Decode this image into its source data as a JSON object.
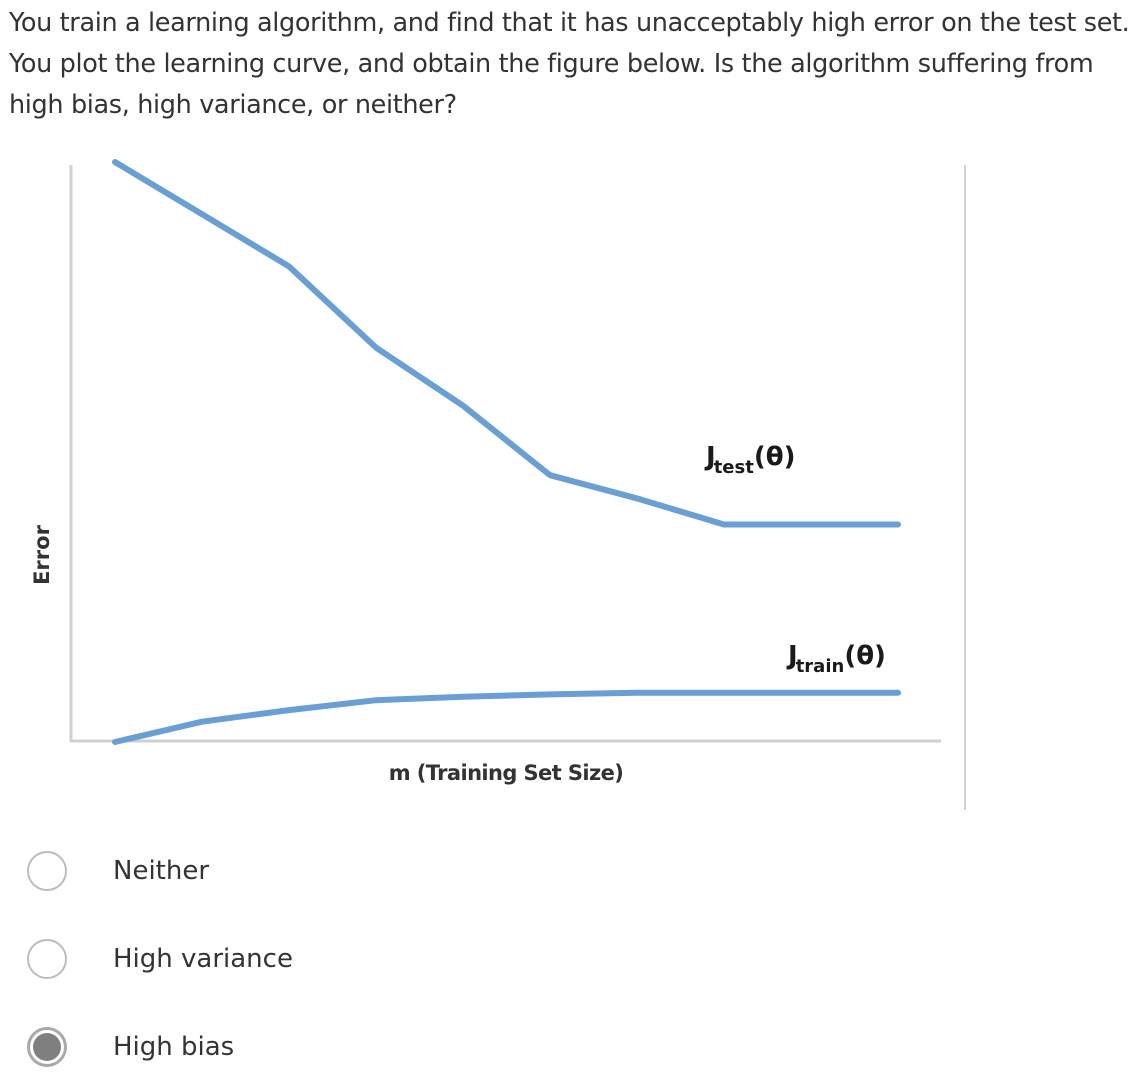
{
  "question": {
    "text": "You train a learning algorithm, and find that it has unacceptably high error on the test set. You plot the learning curve, and obtain the figure below. Is the algorithm suffering from high bias, high variance, or neither?"
  },
  "chart_data": {
    "type": "line",
    "ylabel": "Error",
    "xlabel": "m (Training Set Size)",
    "x": [
      0,
      1,
      2,
      3,
      4,
      5,
      6,
      7,
      8,
      9
    ],
    "series": [
      {
        "name": "Jtest(θ)",
        "label_main": "J",
        "label_sub": "test",
        "label_arg": "(θ)",
        "color": "#6a9fd4",
        "values": [
          10.0,
          9.1,
          8.2,
          6.8,
          5.8,
          4.6,
          4.2,
          3.75,
          3.75,
          3.75
        ]
      },
      {
        "name": "Jtrain(θ)",
        "label_main": "J",
        "label_sub": "train",
        "label_arg": "(θ)",
        "color": "#6a9fd4",
        "values": [
          0.0,
          0.35,
          0.55,
          0.72,
          0.78,
          0.82,
          0.85,
          0.85,
          0.85,
          0.85
        ]
      }
    ],
    "ylim": [
      0,
      10
    ],
    "grid": false,
    "legend": "inline"
  },
  "options": [
    {
      "label": "Neither",
      "checked": false
    },
    {
      "label": "High variance",
      "checked": false
    },
    {
      "label": "High bias",
      "checked": true
    }
  ]
}
